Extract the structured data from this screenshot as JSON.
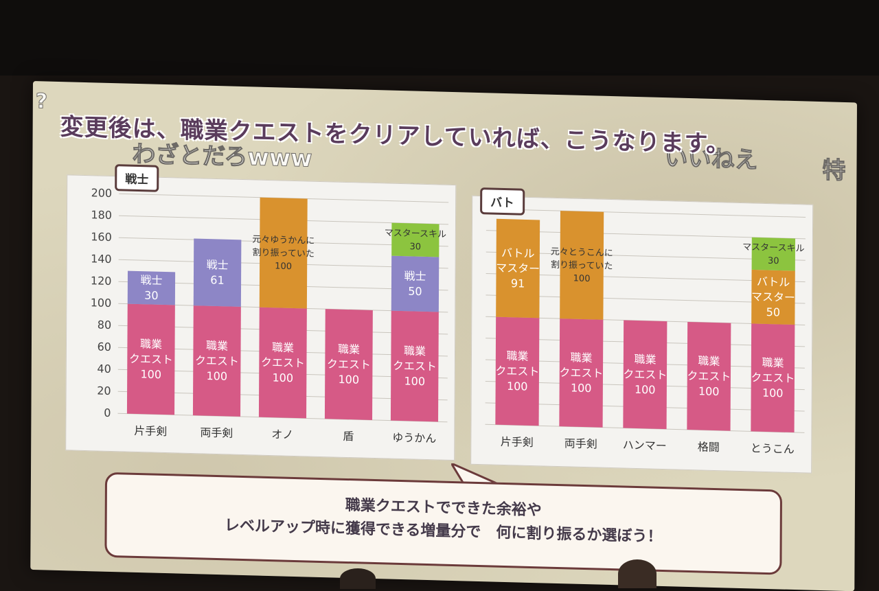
{
  "slide": {
    "title": "変更後は、職業クエストをクリアしていれば、こうなります。",
    "callout_line1": "職業クエストでできた余裕や",
    "callout_line2": "レベルアップ時に獲得できる増量分で　何に割り振るか選ぼう！"
  },
  "danmaku": {
    "c1": "?",
    "c2": "わざとだろwww",
    "c3": "いいねえ",
    "c4": "特"
  },
  "colors": {
    "base": "#d65a86",
    "senshi": "#8d86c6",
    "battle": "#d9922e",
    "master": "#8cc43f"
  },
  "chart_data": [
    {
      "type": "bar",
      "title": "戦士",
      "categories": [
        "片手剣",
        "両手剣",
        "オノ",
        "盾",
        "ゆうかん"
      ],
      "ylim": [
        0,
        200
      ],
      "yticks": [
        "200",
        "180",
        "160",
        "140",
        "120",
        "100",
        "80",
        "60",
        "40",
        "20",
        "0"
      ],
      "stacked": true,
      "series": [
        {
          "name": "職業クエスト",
          "values": [
            100,
            100,
            100,
            100,
            100
          ]
        },
        {
          "name": "戦士",
          "values": [
            30,
            61,
            0,
            0,
            50
          ]
        },
        {
          "name": "元々ゆうかんに割り振っていた",
          "values": [
            0,
            0,
            100,
            0,
            0
          ]
        },
        {
          "name": "マスタースキル",
          "values": [
            0,
            0,
            0,
            0,
            30
          ]
        }
      ],
      "labels": [
        [
          "職業",
          "クエスト",
          "100"
        ],
        [
          "戦士",
          "30"
        ],
        [
          "職業",
          "クエスト",
          "100"
        ],
        [
          "戦士",
          "61"
        ],
        [
          "職業",
          "クエスト",
          "100"
        ],
        [
          "元々ゆうかんに",
          "割り振っていた",
          "100"
        ],
        [
          "職業",
          "クエスト",
          "100"
        ],
        [
          "職業",
          "クエスト",
          "100"
        ],
        [
          "戦士",
          "50"
        ],
        [
          "マスタースキル",
          "30"
        ]
      ]
    },
    {
      "type": "bar",
      "title": "バト",
      "categories": [
        "片手剣",
        "両手剣",
        "ハンマー",
        "格闘",
        "とうこん"
      ],
      "ylim": [
        0,
        200
      ],
      "stacked": true,
      "series": [
        {
          "name": "職業クエスト",
          "values": [
            100,
            100,
            100,
            100,
            100
          ]
        },
        {
          "name": "バトルマスター",
          "values": [
            91,
            0,
            0,
            0,
            50
          ]
        },
        {
          "name": "元々とうこんに割り振っていた",
          "values": [
            0,
            100,
            0,
            0,
            0
          ]
        },
        {
          "name": "マスタースキル",
          "values": [
            0,
            0,
            0,
            0,
            30
          ]
        }
      ],
      "labels": [
        [
          "職業",
          "クエスト",
          "100"
        ],
        [
          "バトル",
          "マスター",
          "91"
        ],
        [
          "職業",
          "クエスト",
          "100"
        ],
        [
          "元々とうこんに",
          "割り振っていた",
          "100"
        ],
        [
          "職業",
          "クエスト",
          "100"
        ],
        [
          "職業",
          "クエスト",
          "100"
        ],
        [
          "職業",
          "クエスト",
          "100"
        ],
        [
          "バトル",
          "マスター",
          "50"
        ],
        [
          "マスタースキル",
          "30"
        ]
      ]
    }
  ]
}
